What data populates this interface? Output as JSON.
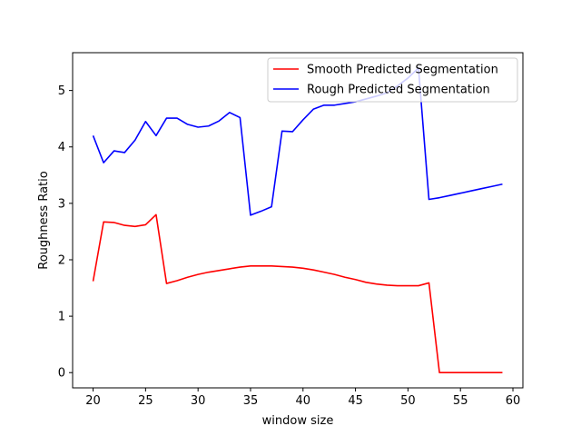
{
  "chart_data": {
    "type": "line",
    "title": "",
    "xlabel": "window size",
    "ylabel": "Roughness Ratio",
    "xlim": [
      18.05,
      60.95
    ],
    "ylim": [
      -0.27,
      5.67
    ],
    "xticks": [
      20,
      25,
      30,
      35,
      40,
      45,
      50,
      55,
      60
    ],
    "yticks": [
      0,
      1,
      2,
      3,
      4,
      5
    ],
    "grid": false,
    "legend_position": "top-right",
    "series": [
      {
        "name": "Smooth Predicted Segmentation",
        "color": "#ff0000",
        "x": [
          20,
          21,
          22,
          23,
          24,
          25,
          26,
          27,
          28,
          29,
          30,
          31,
          32,
          33,
          34,
          35,
          36,
          37,
          38,
          39,
          40,
          41,
          42,
          43,
          44,
          45,
          46,
          47,
          48,
          49,
          50,
          51,
          52,
          53,
          54,
          55,
          56,
          57,
          58,
          59
        ],
        "y": [
          1.62,
          2.67,
          2.66,
          2.61,
          2.59,
          2.62,
          2.8,
          1.58,
          1.63,
          1.69,
          1.74,
          1.78,
          1.81,
          1.84,
          1.87,
          1.89,
          1.89,
          1.89,
          1.88,
          1.87,
          1.85,
          1.82,
          1.78,
          1.74,
          1.69,
          1.65,
          1.6,
          1.57,
          1.55,
          1.54,
          1.54,
          1.54,
          1.59,
          0.0,
          0.0,
          0.0,
          0.0,
          0.0,
          0.0,
          0.0
        ]
      },
      {
        "name": "Rough Predicted Segmentation",
        "color": "#0000ff",
        "x": [
          20,
          21,
          22,
          23,
          24,
          25,
          26,
          27,
          28,
          29,
          30,
          31,
          32,
          33,
          34,
          35,
          36,
          37,
          38,
          39,
          40,
          41,
          42,
          43,
          44,
          45,
          46,
          47,
          48,
          49,
          50,
          51,
          52,
          53,
          54,
          55,
          56,
          57,
          58,
          59
        ],
        "y": [
          4.2,
          3.72,
          3.93,
          3.9,
          4.12,
          4.45,
          4.2,
          4.51,
          4.51,
          4.4,
          4.35,
          4.37,
          4.46,
          4.61,
          4.52,
          2.79,
          2.86,
          2.94,
          4.28,
          4.27,
          4.48,
          4.67,
          4.74,
          4.74,
          4.77,
          4.8,
          4.85,
          4.9,
          4.96,
          5.08,
          5.22,
          5.4,
          3.07,
          3.1,
          3.14,
          3.18,
          3.22,
          3.26,
          3.3,
          3.34
        ]
      }
    ]
  }
}
